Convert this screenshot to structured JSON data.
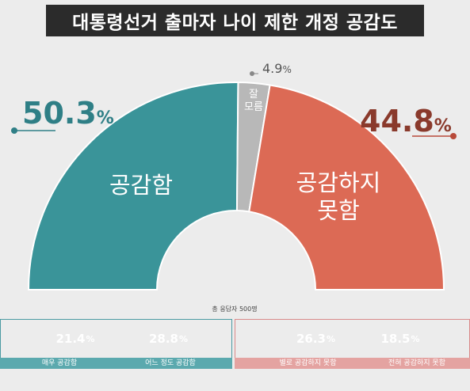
{
  "title": "대통령선거 출마자 나이 제한 개정 공감도",
  "respondents": "총 응답자 500명",
  "chart_data": {
    "type": "pie",
    "title": "대통령선거 출마자 나이 제한 개정 공감도",
    "slices": [
      {
        "label": "공감함",
        "value": 50.3,
        "color": "#3a9499"
      },
      {
        "label": "잘 모름",
        "value": 4.9,
        "color": "#b8b8b8"
      },
      {
        "label": "공감하지 못함",
        "value": 44.8,
        "color": "#dc6a55"
      }
    ],
    "sub_breakdown": [
      {
        "label": "매우 공감함",
        "value": 21.4,
        "color": "#318087"
      },
      {
        "label": "어느 정도 공감함",
        "value": 28.8,
        "color": "#5fbec5"
      },
      {
        "label": "별로 공감하지 못함",
        "value": 26.3,
        "color": "#e58a76"
      },
      {
        "label": "전혀 공감하지 못함",
        "value": 18.5,
        "color": "#b9583f"
      }
    ]
  },
  "display": {
    "left_value": "50.3",
    "left_label": "공감함",
    "top_value": "4.9",
    "top_label_line1": "잘",
    "top_label_line2": "모름",
    "right_value": "44.8",
    "right_label_line1": "공감하지",
    "right_label_line2": "못함",
    "unit": "%",
    "sub": [
      {
        "value": "21.4",
        "label": "매우 공감함"
      },
      {
        "value": "28.8",
        "label": "어느 정도 공감함"
      },
      {
        "value": "26.3",
        "label": "별로 공감하지 못함"
      },
      {
        "value": "18.5",
        "label": "전혀 공감하지 못함"
      }
    ]
  }
}
